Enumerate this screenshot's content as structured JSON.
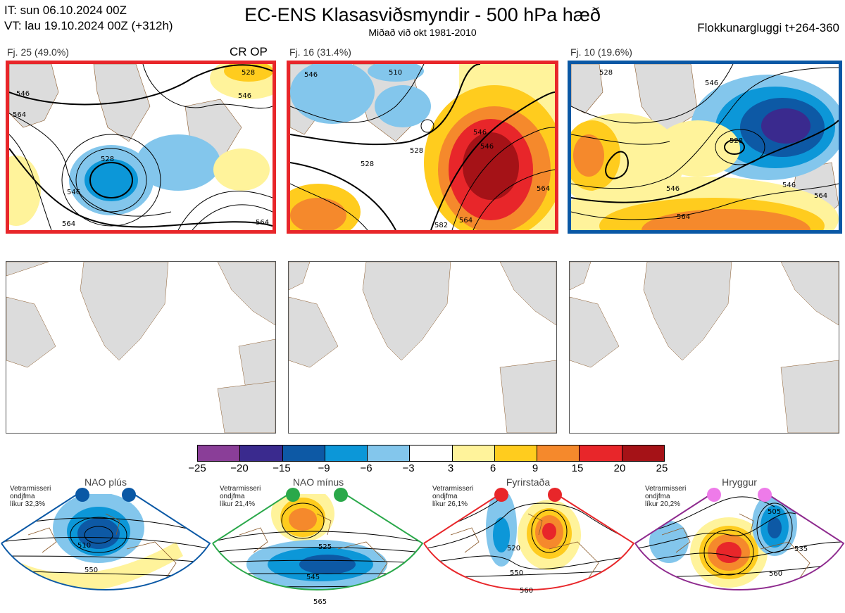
{
  "header": {
    "init_time": "IT: sun 06.10.2024 00Z",
    "valid_time": "VT: lau 19.10.2024 00Z  (+312h)",
    "title": "EC-ENS Klasasviðsmyndir - 500 hPa hæð",
    "subtitle": "Miðað við okt 1981-2010",
    "window": "Flokkunargluggi t+264-360"
  },
  "clusters": [
    {
      "label": "Fj. 25 (49.0%)",
      "tag": "CR OP",
      "border_color": "#e8262a",
      "contours": [
        "528",
        "546",
        "564",
        "546",
        "564",
        "528",
        "546",
        "564"
      ]
    },
    {
      "label": "Fj. 16 (31.4%)",
      "tag": "",
      "border_color": "#e8262a",
      "contours": [
        "546",
        "528",
        "510",
        "528",
        "546",
        "546",
        "564",
        "582",
        "564"
      ]
    },
    {
      "label": "Fj. 10 (19.6%)",
      "tag": "",
      "border_color": "#0a58a5",
      "contours": [
        "528",
        "546",
        "528",
        "546",
        "564",
        "546",
        "564"
      ]
    }
  ],
  "colorbar": {
    "colors": [
      "#8a3e98",
      "#3a2a8e",
      "#0d59a5",
      "#0c97d8",
      "#83c6ec",
      "#ffffff",
      "#fff39b",
      "#ffcc1e",
      "#f5892c",
      "#e8262a",
      "#a51217"
    ],
    "ticks": [
      "−25",
      "−20",
      "−15",
      "−9",
      "−6",
      "−3",
      "3",
      "6",
      "9",
      "15",
      "20",
      "25"
    ]
  },
  "regimes": [
    {
      "name": "NAO plús",
      "note": [
        "Vetrarmisseri",
        "ondjfma",
        "líkur 32,3%"
      ],
      "color": "#0a58a5",
      "dot_color": "#0a58a5",
      "labels": [
        "510",
        "550"
      ]
    },
    {
      "name": "NAO mínus",
      "note": [
        "Vetrarmisseri",
        "ondjfma",
        "líkur 21,4%"
      ],
      "color": "#2aa84a",
      "dot_color": "#2aa84a",
      "labels": [
        "525",
        "545",
        "565"
      ]
    },
    {
      "name": "Fyrirstaða",
      "note": [
        "Vetrarmisseri",
        "ondjfma",
        "líkur 26,1%"
      ],
      "color": "#e8262a",
      "dot_color": "#e8262a",
      "labels": [
        "520",
        "550",
        "560"
      ]
    },
    {
      "name": "Hryggur",
      "note": [
        "Vetrarmisseri",
        "ondjfma",
        "líkur 20,2%"
      ],
      "color": "#8e2a8e",
      "dot_color": "#ee7be9",
      "labels": [
        "505",
        "535",
        "560"
      ]
    }
  ]
}
